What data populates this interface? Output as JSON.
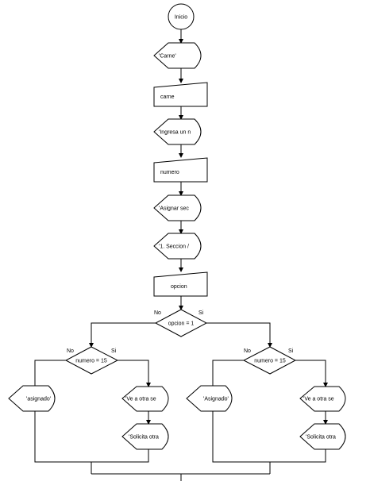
{
  "flowchart": {
    "start": "Inicio",
    "display_carne": "'Carne'",
    "input_carne": "carne",
    "display_ingresa": "'Ingresa un n",
    "input_numero": "numero",
    "display_asignar": "'Asignar sec",
    "display_seccion": "'1. Seccion /",
    "input_opcion": "opcion",
    "decision_opcion": "opcion = 1",
    "decision_opcion_no": "No",
    "decision_opcion_yes": "Si",
    "left": {
      "decision": "numero = 15",
      "no_label": "No",
      "yes_label": "Si",
      "no_output": "'asignado'",
      "yes_output_1": "'Ve a otra se",
      "yes_output_2": "'Solicita otra"
    },
    "right": {
      "decision": "numero = 15",
      "no_label": "No",
      "yes_label": "Si",
      "no_output": "'Asignado'",
      "yes_output_1": "'Ve a otra se",
      "yes_output_2": "'Solicita otra"
    }
  }
}
